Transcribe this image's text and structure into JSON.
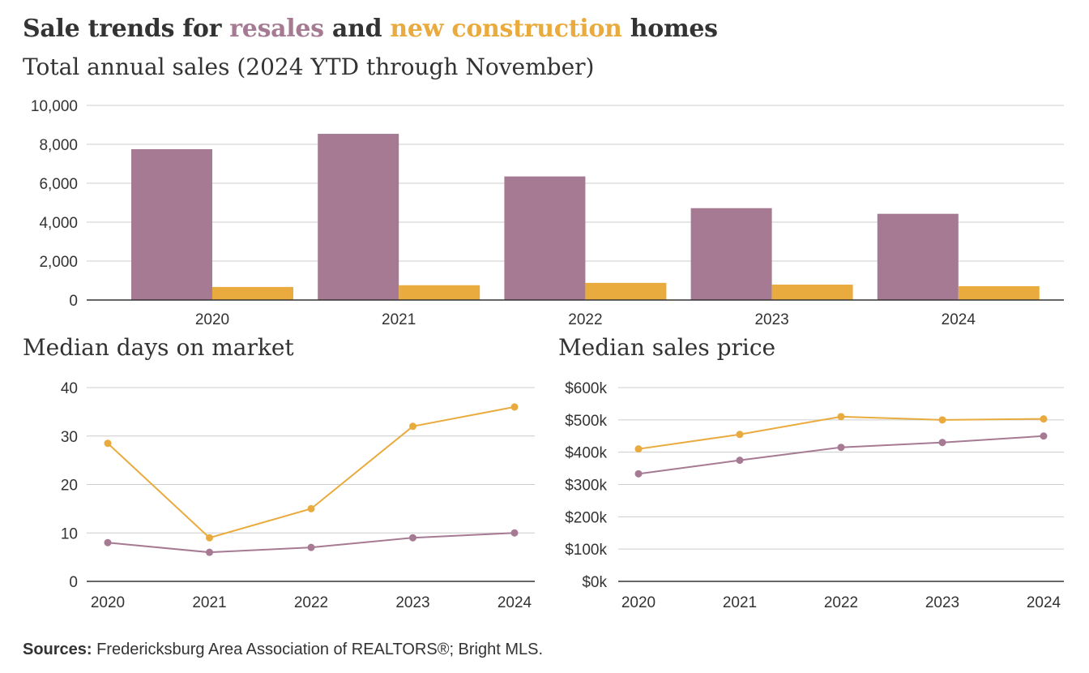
{
  "title": {
    "part1": "Sale trends for ",
    "resales": "resales",
    "part2": " and ",
    "new_construction": "new construction",
    "part3": " homes"
  },
  "colors": {
    "resales": "#a67a93",
    "new_construction": "#e9ab3e",
    "axis": "#333333",
    "grid": "#cccccc"
  },
  "source": {
    "label": "Sources:",
    "text": " Fredericksburg Area Association of REALTORS®; Bright MLS."
  },
  "chart_data": [
    {
      "id": "annual-sales",
      "type": "bar",
      "title": "Total annual sales (2024 YTD through November)",
      "categories": [
        "2020",
        "2021",
        "2022",
        "2023",
        "2024"
      ],
      "series": [
        {
          "key": "resales",
          "values": [
            7750,
            8540,
            6350,
            4720,
            4430
          ]
        },
        {
          "key": "new_construction",
          "values": [
            670,
            760,
            880,
            790,
            710
          ]
        }
      ],
      "ylim": [
        0,
        10000
      ],
      "yticks": [
        0,
        2000,
        4000,
        6000,
        8000,
        10000
      ],
      "ytick_labels": [
        "0",
        "2,000",
        "4,000",
        "6,000",
        "8,000",
        "10,000"
      ],
      "grid": true
    },
    {
      "id": "days-on-market",
      "type": "line",
      "title": "Median days on market",
      "categories": [
        "2020",
        "2021",
        "2022",
        "2023",
        "2024"
      ],
      "series": [
        {
          "key": "new_construction",
          "values": [
            28.5,
            9,
            15,
            32,
            36
          ]
        },
        {
          "key": "resales",
          "values": [
            8,
            6,
            7,
            9,
            10
          ]
        }
      ],
      "ylim": [
        0,
        40
      ],
      "yticks": [
        0,
        10,
        20,
        30,
        40
      ],
      "ytick_labels": [
        "0",
        "10",
        "20",
        "30",
        "40"
      ],
      "grid": true
    },
    {
      "id": "median-price",
      "type": "line",
      "title": "Median sales price",
      "categories": [
        "2020",
        "2021",
        "2022",
        "2023",
        "2024"
      ],
      "series": [
        {
          "key": "new_construction",
          "values": [
            410000,
            455000,
            510000,
            500000,
            503000
          ]
        },
        {
          "key": "resales",
          "values": [
            333000,
            375000,
            415000,
            430000,
            450000
          ]
        }
      ],
      "ylim": [
        0,
        600000
      ],
      "yticks": [
        0,
        100000,
        200000,
        300000,
        400000,
        500000,
        600000
      ],
      "ytick_labels": [
        "$0k",
        "$100k",
        "$200k",
        "$300k",
        "$400k",
        "$500k",
        "$600k"
      ],
      "grid": true
    }
  ]
}
